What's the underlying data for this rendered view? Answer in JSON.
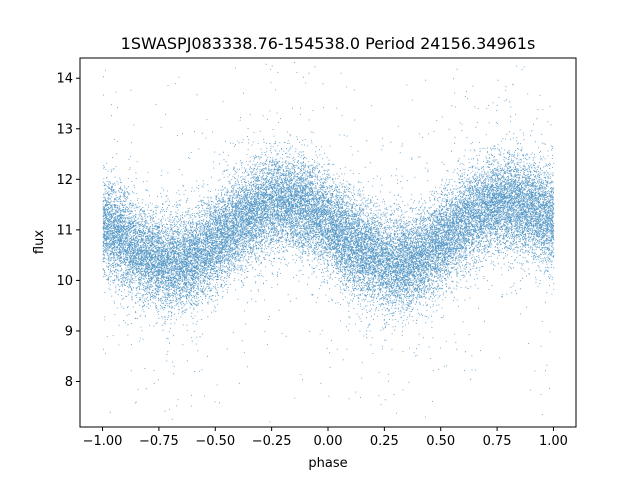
{
  "chart_data": {
    "type": "scatter",
    "title": "1SWASPJ083338.76-154538.0 Period 24156.34961s",
    "xlabel": "phase",
    "ylabel": "flux",
    "xlim": [
      -1.1,
      1.1
    ],
    "ylim": [
      7.1,
      14.4
    ],
    "xticks": [
      -1.0,
      -0.75,
      -0.5,
      -0.25,
      0.0,
      0.25,
      0.5,
      0.75,
      1.0
    ],
    "xtick_labels": [
      "−1.00",
      "−0.75",
      "−0.50",
      "−0.25",
      "0.00",
      "0.25",
      "0.50",
      "0.75",
      "1.00"
    ],
    "yticks": [
      8,
      9,
      10,
      11,
      12,
      13,
      14
    ],
    "ytick_labels": [
      "8",
      "9",
      "10",
      "11",
      "12",
      "13",
      "14"
    ],
    "grid": false,
    "point_color": "#1f77b4",
    "series": [
      {
        "model": "sinusoid",
        "x_range": [
          -1.0,
          1.0
        ],
        "mean_flux": 10.95,
        "amplitude": 0.6,
        "peak_phases": [
          -0.2,
          0.8
        ],
        "trough_phases": [
          -0.7,
          0.3
        ],
        "scatter_sigma": 0.55,
        "n_points": 30000
      }
    ]
  }
}
